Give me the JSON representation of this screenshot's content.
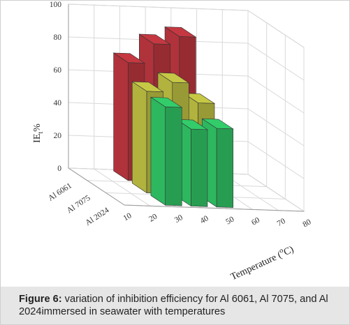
{
  "chart_data": {
    "type": "bar",
    "subtype": "3d-bar",
    "categories": [
      "Al 6061",
      "Al 7075",
      "Al 2024"
    ],
    "x": [
      30,
      40,
      50
    ],
    "series": [
      {
        "name": "Al 6061",
        "color": "#b0323a",
        "values": [
          72,
          84,
          89
        ]
      },
      {
        "name": "Al 7075",
        "color": "#b1b33e",
        "values": [
          62,
          68,
          56
        ]
      },
      {
        "name": "Al 2024",
        "color": "#2db75f",
        "values": [
          60,
          47,
          48
        ]
      }
    ],
    "xlabel_parts": {
      "main": "Temperature (",
      "sup": "o",
      "end": "C)"
    },
    "ylabel_parts": {
      "main": "IE",
      "sub": "t",
      "end": "%"
    },
    "x_ticks": [
      "10",
      "20",
      "30",
      "40",
      "50",
      "60",
      "70",
      "80"
    ],
    "y_ticks": [
      "0",
      "20",
      "40",
      "60",
      "80",
      "100"
    ],
    "ylim": [
      0,
      100
    ],
    "xlim": [
      10,
      80
    ],
    "grid": true
  },
  "caption": {
    "label": "Figure 6:",
    "text": " variation of inhibition efficiency for Al 6061, Al 7075, and Al 2024immersed in seawater with temperatures"
  }
}
